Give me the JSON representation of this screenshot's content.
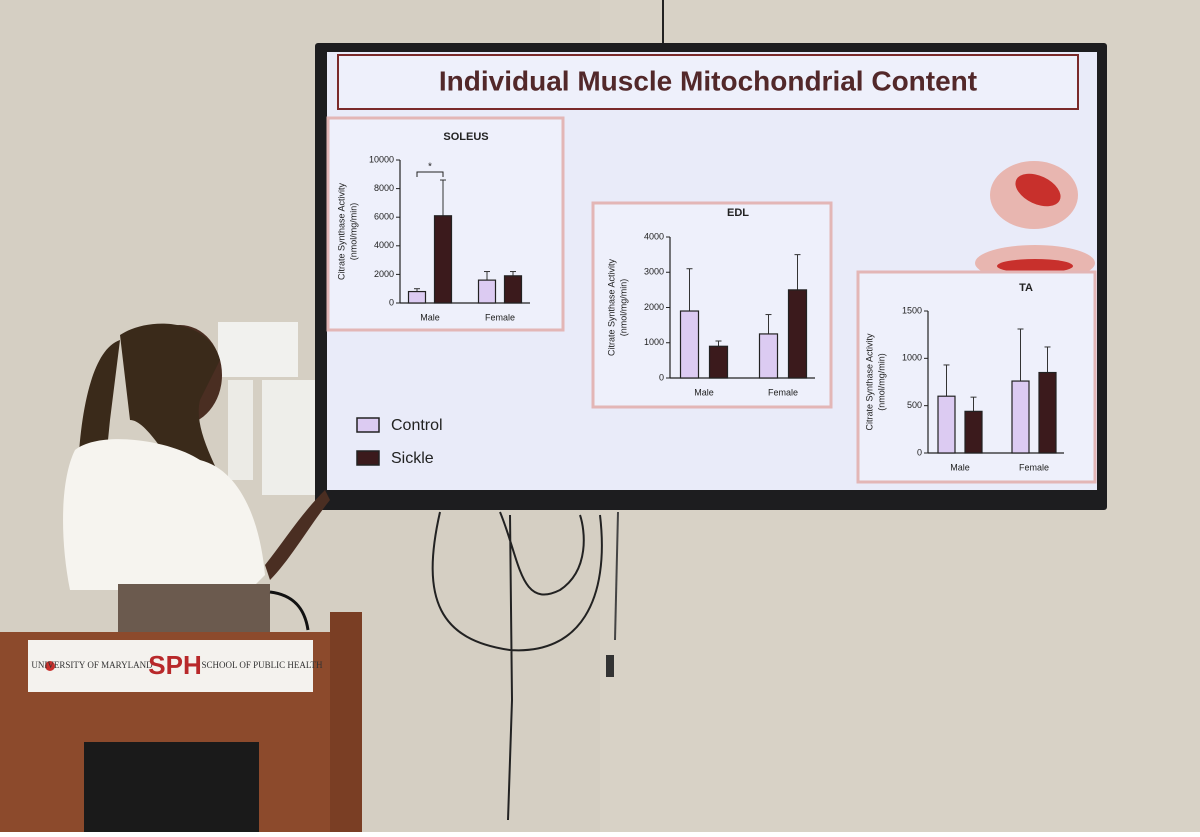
{
  "slide": {
    "title": "Individual Muscle Mitochondrial Content"
  },
  "podium": {
    "university": "UNIVERSITY OF MARYLAND",
    "logo": "SPH",
    "school": "SCHOOL OF PUBLIC HEALTH"
  },
  "chart_data": [
    {
      "type": "bar",
      "title": "SOLEUS",
      "ylabel": [
        "Citrate Synthase Activity",
        "(nmol/mg/min)"
      ],
      "categories": [
        "Male",
        "Female"
      ],
      "annotations": [
        "*"
      ],
      "series": [
        {
          "name": "Control",
          "color": "#dccbf2",
          "values": [
            800,
            1600
          ],
          "errors": [
            200,
            600
          ]
        },
        {
          "name": "Sickle",
          "color": "#3b1a1c",
          "values": [
            6100,
            1900
          ],
          "errors": [
            2500,
            300
          ]
        }
      ],
      "ylim": [
        0,
        10000
      ],
      "yticks": [
        0,
        2000,
        4000,
        6000,
        8000,
        10000
      ]
    },
    {
      "type": "bar",
      "title": "EDL",
      "ylabel": [
        "Citrate Synthase Activity",
        "(nmol/mg/min)"
      ],
      "categories": [
        "Male",
        "Female"
      ],
      "series": [
        {
          "name": "Control",
          "color": "#dccbf2",
          "values": [
            1900,
            1250
          ],
          "errors": [
            1200,
            550
          ]
        },
        {
          "name": "Sickle",
          "color": "#3b1a1c",
          "values": [
            900,
            2500
          ],
          "errors": [
            150,
            1000
          ]
        }
      ],
      "ylim": [
        0,
        4000
      ],
      "yticks": [
        0,
        1000,
        2000,
        3000,
        4000
      ]
    },
    {
      "type": "bar",
      "title": "TA",
      "ylabel": [
        "Citrate Synthase Activity",
        "(nmol/mg/min)"
      ],
      "categories": [
        "Male",
        "Female"
      ],
      "series": [
        {
          "name": "Control",
          "color": "#dccbf2",
          "values": [
            600,
            760
          ],
          "errors": [
            330,
            550
          ]
        },
        {
          "name": "Sickle",
          "color": "#3b1a1c",
          "values": [
            440,
            850
          ],
          "errors": [
            150,
            270
          ]
        }
      ],
      "ylim": [
        0,
        1500
      ],
      "yticks": [
        0,
        500,
        1000,
        1500
      ]
    }
  ]
}
